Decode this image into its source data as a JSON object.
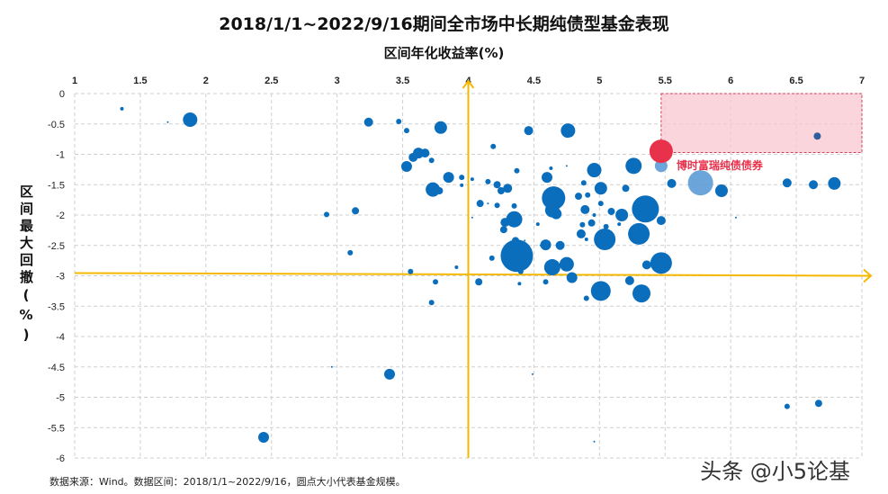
{
  "chart_data": {
    "type": "scatter",
    "subtype": "bubble",
    "title": "2018/1/1~2022/9/16期间全市场中长期纯债型基金表现",
    "xlabel": "区间年化收益率(%)",
    "ylabel": "区间最大回撤(%)",
    "xlim": [
      1,
      7
    ],
    "ylim": [
      -6,
      0
    ],
    "x_ticks": [
      "1",
      "1.5",
      "2",
      "2.5",
      "3",
      "3.5",
      "4",
      "4.5",
      "5",
      "5.5",
      "6",
      "6.5",
      "7"
    ],
    "y_ticks": [
      "0",
      "-0.5",
      "-1",
      "-1.5",
      "-2",
      "-2.5",
      "-3",
      "-3.5",
      "-4",
      "-4.5",
      "-5",
      "-5.5",
      "-6"
    ],
    "x_axis_position": "top",
    "grid": true,
    "reference_lines": {
      "x": 4,
      "y": -2.97,
      "color": "#F5B800"
    },
    "highlight_region": {
      "x": [
        5.47,
        7
      ],
      "y": [
        -0.97,
        0
      ],
      "color": "#F8C8D0"
    },
    "colors": {
      "point": "#0A6EBD",
      "highlight": "#E8314B",
      "light": "#5B9BD5",
      "dark": "#2E5E9E"
    },
    "annotation": {
      "label": "博时富瑞纯债债券",
      "x": 5.47,
      "y": -0.95
    },
    "points": [
      {
        "x": 1.36,
        "y": -0.25,
        "size": 2
      },
      {
        "x": 1.71,
        "y": -0.47,
        "size": 1
      },
      {
        "x": 1.88,
        "y": -0.43,
        "size": 8
      },
      {
        "x": 3.24,
        "y": -0.47,
        "size": 5
      },
      {
        "x": 3.47,
        "y": -0.46,
        "size": 3
      },
      {
        "x": 3.53,
        "y": -0.61,
        "size": 3
      },
      {
        "x": 3.79,
        "y": -0.56,
        "size": 7
      },
      {
        "x": 4.76,
        "y": -0.61,
        "size": 8
      },
      {
        "x": 4.46,
        "y": -0.61,
        "size": 5
      },
      {
        "x": 3.53,
        "y": -1.2,
        "size": 6
      },
      {
        "x": 3.58,
        "y": -1.05,
        "size": 5
      },
      {
        "x": 3.62,
        "y": -0.98,
        "size": 6
      },
      {
        "x": 3.67,
        "y": -0.98,
        "size": 5
      },
      {
        "x": 3.72,
        "y": -1.1,
        "size": 3
      },
      {
        "x": 3.85,
        "y": -1.38,
        "size": 6
      },
      {
        "x": 3.95,
        "y": -1.38,
        "size": 3
      },
      {
        "x": 3.73,
        "y": -1.58,
        "size": 8
      },
      {
        "x": 3.78,
        "y": -1.6,
        "size": 4
      },
      {
        "x": 3.14,
        "y": -1.93,
        "size": 4
      },
      {
        "x": 2.92,
        "y": -1.99,
        "size": 3
      },
      {
        "x": 3.1,
        "y": -2.62,
        "size": 3
      },
      {
        "x": 3.56,
        "y": -2.93,
        "size": 3
      },
      {
        "x": 3.75,
        "y": -3.1,
        "size": 3
      },
      {
        "x": 3.72,
        "y": -3.44,
        "size": 3
      },
      {
        "x": 3.91,
        "y": -2.86,
        "size": 2
      },
      {
        "x": 4.08,
        "y": -3.1,
        "size": 4
      },
      {
        "x": 2.96,
        "y": -4.5,
        "size": 1
      },
      {
        "x": 3.4,
        "y": -4.62,
        "size": 6
      },
      {
        "x": 2.44,
        "y": -5.66,
        "size": 6
      },
      {
        "x": 4.49,
        "y": -4.62,
        "size": 1
      },
      {
        "x": 4.96,
        "y": -5.73,
        "size": 1
      },
      {
        "x": 6.43,
        "y": -5.15,
        "size": 3
      },
      {
        "x": 6.67,
        "y": -5.1,
        "size": 4
      },
      {
        "x": 4.19,
        "y": -0.87,
        "size": 3
      },
      {
        "x": 6.66,
        "y": -0.7,
        "size": 4,
        "tone": "dark"
      },
      {
        "x": 5.26,
        "y": -1.19,
        "size": 9
      },
      {
        "x": 5.47,
        "y": -1.19,
        "size": 7,
        "tone": "light"
      },
      {
        "x": 4.96,
        "y": -1.26,
        "size": 8
      },
      {
        "x": 4.37,
        "y": -1.27,
        "size": 3
      },
      {
        "x": 4.63,
        "y": -1.23,
        "size": 2
      },
      {
        "x": 4.6,
        "y": -1.38,
        "size": 6
      },
      {
        "x": 4.75,
        "y": -1.19,
        "size": 1
      },
      {
        "x": 4.03,
        "y": -1.41,
        "size": 2
      },
      {
        "x": 4.15,
        "y": -1.45,
        "size": 3
      },
      {
        "x": 4.22,
        "y": -1.5,
        "size": 4
      },
      {
        "x": 4.3,
        "y": -1.56,
        "size": 5
      },
      {
        "x": 4.25,
        "y": -1.6,
        "size": 4
      },
      {
        "x": 3.95,
        "y": -1.51,
        "size": 2
      },
      {
        "x": 4.88,
        "y": -1.47,
        "size": 3
      },
      {
        "x": 5.01,
        "y": -1.56,
        "size": 7
      },
      {
        "x": 5.2,
        "y": -1.56,
        "size": 4
      },
      {
        "x": 5.55,
        "y": -1.48,
        "size": 5
      },
      {
        "x": 5.77,
        "y": -1.47,
        "size": 14,
        "tone": "light"
      },
      {
        "x": 5.93,
        "y": -1.6,
        "size": 7
      },
      {
        "x": 6.43,
        "y": -1.47,
        "size": 5
      },
      {
        "x": 6.63,
        "y": -1.5,
        "size": 5
      },
      {
        "x": 6.79,
        "y": -1.48,
        "size": 7
      },
      {
        "x": 4.65,
        "y": -1.72,
        "size": 13
      },
      {
        "x": 4.84,
        "y": -1.69,
        "size": 4
      },
      {
        "x": 4.91,
        "y": -1.67,
        "size": 3
      },
      {
        "x": 4.09,
        "y": -1.81,
        "size": 4
      },
      {
        "x": 4.15,
        "y": -1.81,
        "size": 1
      },
      {
        "x": 4.22,
        "y": -1.84,
        "size": 3
      },
      {
        "x": 4.35,
        "y": -1.85,
        "size": 3
      },
      {
        "x": 5.01,
        "y": -1.81,
        "size": 3
      },
      {
        "x": 5.35,
        "y": -1.9,
        "size": 15
      },
      {
        "x": 4.64,
        "y": -1.92,
        "size": 8
      },
      {
        "x": 4.67,
        "y": -1.98,
        "size": 6
      },
      {
        "x": 4.89,
        "y": -1.91,
        "size": 5
      },
      {
        "x": 4.96,
        "y": -2.0,
        "size": 2
      },
      {
        "x": 5.09,
        "y": -1.94,
        "size": 4
      },
      {
        "x": 5.17,
        "y": -2.0,
        "size": 7
      },
      {
        "x": 4.03,
        "y": -2.04,
        "size": 1
      },
      {
        "x": 4.35,
        "y": -2.07,
        "size": 9
      },
      {
        "x": 4.28,
        "y": -2.12,
        "size": 5
      },
      {
        "x": 4.27,
        "y": -2.24,
        "size": 4
      },
      {
        "x": 4.53,
        "y": -2.15,
        "size": 2
      },
      {
        "x": 4.87,
        "y": -2.16,
        "size": 3
      },
      {
        "x": 4.94,
        "y": -2.13,
        "size": 4
      },
      {
        "x": 5.05,
        "y": -2.19,
        "size": 3
      },
      {
        "x": 5.15,
        "y": -2.15,
        "size": 2
      },
      {
        "x": 5.47,
        "y": -2.09,
        "size": 5
      },
      {
        "x": 6.04,
        "y": -2.04,
        "size": 1
      },
      {
        "x": 4.86,
        "y": -2.31,
        "size": 5
      },
      {
        "x": 4.9,
        "y": -2.4,
        "size": 2
      },
      {
        "x": 5.04,
        "y": -2.4,
        "size": 12
      },
      {
        "x": 5.3,
        "y": -2.31,
        "size": 12
      },
      {
        "x": 4.36,
        "y": -2.42,
        "size": 4
      },
      {
        "x": 4.43,
        "y": -2.42,
        "size": 1
      },
      {
        "x": 4.37,
        "y": -2.67,
        "size": 18
      },
      {
        "x": 4.59,
        "y": -2.49,
        "size": 6
      },
      {
        "x": 4.7,
        "y": -2.5,
        "size": 5
      },
      {
        "x": 4.55,
        "y": -2.5,
        "size": 1
      },
      {
        "x": 4.18,
        "y": -2.71,
        "size": 3
      },
      {
        "x": 4.64,
        "y": -2.86,
        "size": 9
      },
      {
        "x": 4.75,
        "y": -2.81,
        "size": 8
      },
      {
        "x": 4.4,
        "y": -2.93,
        "size": 3
      },
      {
        "x": 5.47,
        "y": -2.79,
        "size": 12
      },
      {
        "x": 5.36,
        "y": -2.82,
        "size": 5
      },
      {
        "x": 4.79,
        "y": -3.03,
        "size": 6
      },
      {
        "x": 4.39,
        "y": -3.13,
        "size": 2
      },
      {
        "x": 4.59,
        "y": -3.1,
        "size": 3
      },
      {
        "x": 5.23,
        "y": -3.08,
        "size": 5
      },
      {
        "x": 5.01,
        "y": -3.25,
        "size": 11
      },
      {
        "x": 5.32,
        "y": -3.29,
        "size": 10
      },
      {
        "x": 4.9,
        "y": -3.37,
        "size": 3
      },
      {
        "x": 5.47,
        "y": -0.95,
        "size": 13,
        "tone": "highlight"
      }
    ]
  },
  "footnote": "数据来源：Wind。数据区间：2018/1/1~2022/9/16，圆点大小代表基金规模。",
  "watermark": "头条 @小5论基"
}
